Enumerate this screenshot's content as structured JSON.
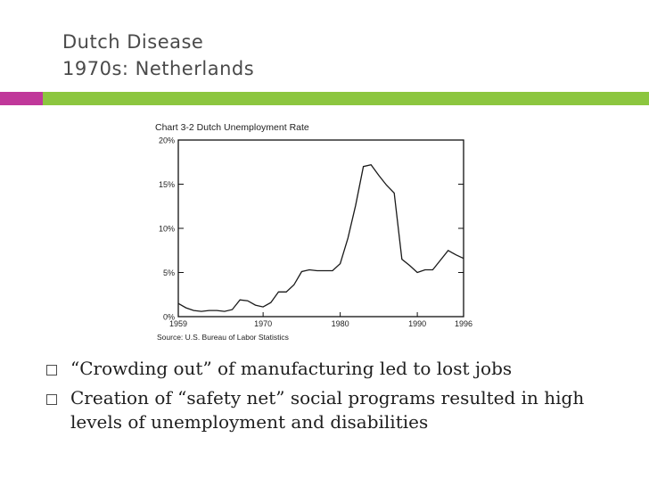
{
  "slide": {
    "title_line1": "Dutch Disease",
    "title_line2": "1970s: Netherlands",
    "accent_colors": {
      "magenta": "#c0389a",
      "green": "#8cc63f"
    }
  },
  "chart_data": {
    "type": "line",
    "title": "Chart 3-2  Dutch Unemployment Rate",
    "source": "Source: U.S. Bureau of Labor Statistics",
    "xlim": [
      1959,
      1996
    ],
    "ylim": [
      0,
      20
    ],
    "x_ticks": [
      {
        "value": 1959,
        "label": "1959"
      },
      {
        "value": 1970,
        "label": "1970"
      },
      {
        "value": 1980,
        "label": "1980"
      },
      {
        "value": 1990,
        "label": "1990"
      },
      {
        "value": 1996,
        "label": "1996"
      }
    ],
    "y_ticks": [
      {
        "value": 0,
        "label": "0%"
      },
      {
        "value": 5,
        "label": "5%"
      },
      {
        "value": 10,
        "label": "10%"
      },
      {
        "value": 15,
        "label": "15%"
      },
      {
        "value": 20,
        "label": "20%"
      }
    ],
    "grid": false,
    "series": [
      {
        "x": [
          1959,
          1960,
          1961,
          1962,
          1963,
          1964,
          1965,
          1966,
          1967,
          1968,
          1969,
          1970,
          1971,
          1972,
          1973,
          1974,
          1975,
          1976,
          1977,
          1978,
          1979,
          1980,
          1981,
          1982,
          1983,
          1984,
          1985,
          1986,
          1987,
          1988,
          1989,
          1990,
          1991,
          1992,
          1993,
          1994,
          1995,
          1996
        ],
        "y": [
          1.5,
          1.0,
          0.7,
          0.6,
          0.7,
          0.7,
          0.6,
          0.8,
          1.9,
          1.8,
          1.3,
          1.1,
          1.6,
          2.8,
          2.8,
          3.6,
          5.1,
          5.3,
          5.2,
          5.2,
          5.2,
          6.0,
          8.9,
          12.6,
          17.0,
          17.2,
          16.0,
          14.9,
          14.0,
          6.5,
          5.8,
          5.0,
          5.3,
          5.3,
          6.4,
          7.5,
          7.0,
          6.6
        ],
        "color": "#1a1a1a"
      }
    ]
  },
  "bullets": [
    "“Crowding out” of manufacturing led to lost jobs",
    "Creation of “safety net” social programs resulted in high levels of unemployment and disabilities"
  ]
}
